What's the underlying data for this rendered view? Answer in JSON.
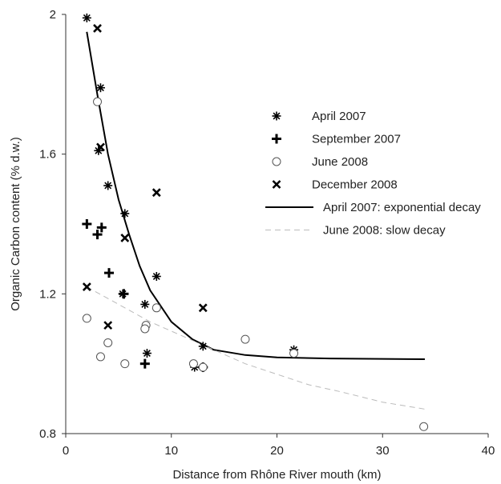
{
  "chart_data": {
    "type": "scatter",
    "title": "",
    "xlabel": "Distance from Rhône River mouth (km)",
    "ylabel": "Organic Carbon content (% d.w.)",
    "xlim": [
      0,
      40
    ],
    "ylim": [
      0.8,
      2.0
    ],
    "xticks": [
      0,
      10,
      20,
      30,
      40
    ],
    "yticks": [
      0.8,
      1.2,
      1.6,
      2.0
    ],
    "xtick_labels": [
      "0",
      "10",
      "20",
      "30",
      "40"
    ],
    "ytick_labels": [
      "0.8",
      "1.2",
      "1.6",
      "2"
    ],
    "grid": false,
    "legend_position": "right",
    "series": [
      {
        "name": "April 2007",
        "marker": "asterisk",
        "points": [
          [
            2.0,
            1.99
          ],
          [
            3.3,
            1.79
          ],
          [
            3.1,
            1.61
          ],
          [
            4.0,
            1.51
          ],
          [
            5.6,
            1.43
          ],
          [
            5.4,
            1.2
          ],
          [
            7.5,
            1.17
          ],
          [
            7.7,
            1.03
          ],
          [
            8.6,
            1.25
          ],
          [
            12.2,
            0.99
          ],
          [
            13.0,
            1.05
          ],
          [
            21.6,
            1.04
          ]
        ]
      },
      {
        "name": "September 2007",
        "marker": "plus",
        "points": [
          [
            2.0,
            1.4
          ],
          [
            3.4,
            1.39
          ],
          [
            3.0,
            1.37
          ],
          [
            4.1,
            1.26
          ],
          [
            5.5,
            1.2
          ],
          [
            7.5,
            1.0
          ],
          [
            13.0,
            0.99
          ]
        ]
      },
      {
        "name": "June 2008",
        "marker": "circle",
        "points": [
          [
            2.0,
            1.13
          ],
          [
            3.0,
            1.75
          ],
          [
            3.3,
            1.02
          ],
          [
            4.0,
            1.06
          ],
          [
            5.6,
            1.0
          ],
          [
            7.6,
            1.11
          ],
          [
            7.5,
            1.1
          ],
          [
            8.6,
            1.16
          ],
          [
            12.1,
            1.0
          ],
          [
            13.0,
            0.99
          ],
          [
            17.0,
            1.07
          ],
          [
            21.6,
            1.03
          ],
          [
            33.9,
            0.82
          ]
        ]
      },
      {
        "name": "December 2008",
        "marker": "cross",
        "points": [
          [
            3.0,
            1.96
          ],
          [
            3.3,
            1.62
          ],
          [
            2.0,
            1.22
          ],
          [
            4.0,
            1.11
          ],
          [
            5.6,
            1.36
          ],
          [
            8.6,
            1.49
          ],
          [
            13.0,
            1.16
          ]
        ]
      }
    ],
    "fits": [
      {
        "name": "April 2007: exponential decay",
        "style": "solid",
        "color": "#000000",
        "points": [
          [
            2.0,
            1.95
          ],
          [
            3.0,
            1.77
          ],
          [
            4.0,
            1.6
          ],
          [
            5.0,
            1.47
          ],
          [
            6.0,
            1.37
          ],
          [
            7.0,
            1.28
          ],
          [
            8.0,
            1.21
          ],
          [
            10.0,
            1.12
          ],
          [
            12.0,
            1.07
          ],
          [
            14.0,
            1.04
          ],
          [
            17.0,
            1.025
          ],
          [
            20.0,
            1.018
          ],
          [
            25.0,
            1.015
          ],
          [
            30.0,
            1.014
          ],
          [
            34.0,
            1.013
          ]
        ]
      },
      {
        "name": "June 2008: slow decay",
        "style": "dashed",
        "color": "#bbbbbb",
        "points": [
          [
            2.0,
            1.22
          ],
          [
            5.0,
            1.17
          ],
          [
            8.0,
            1.12
          ],
          [
            11.0,
            1.08
          ],
          [
            14.0,
            1.04
          ],
          [
            17.0,
            1.0
          ],
          [
            20.0,
            0.97
          ],
          [
            23.0,
            0.94
          ],
          [
            26.0,
            0.92
          ],
          [
            30.0,
            0.89
          ],
          [
            34.0,
            0.87
          ]
        ]
      }
    ]
  }
}
